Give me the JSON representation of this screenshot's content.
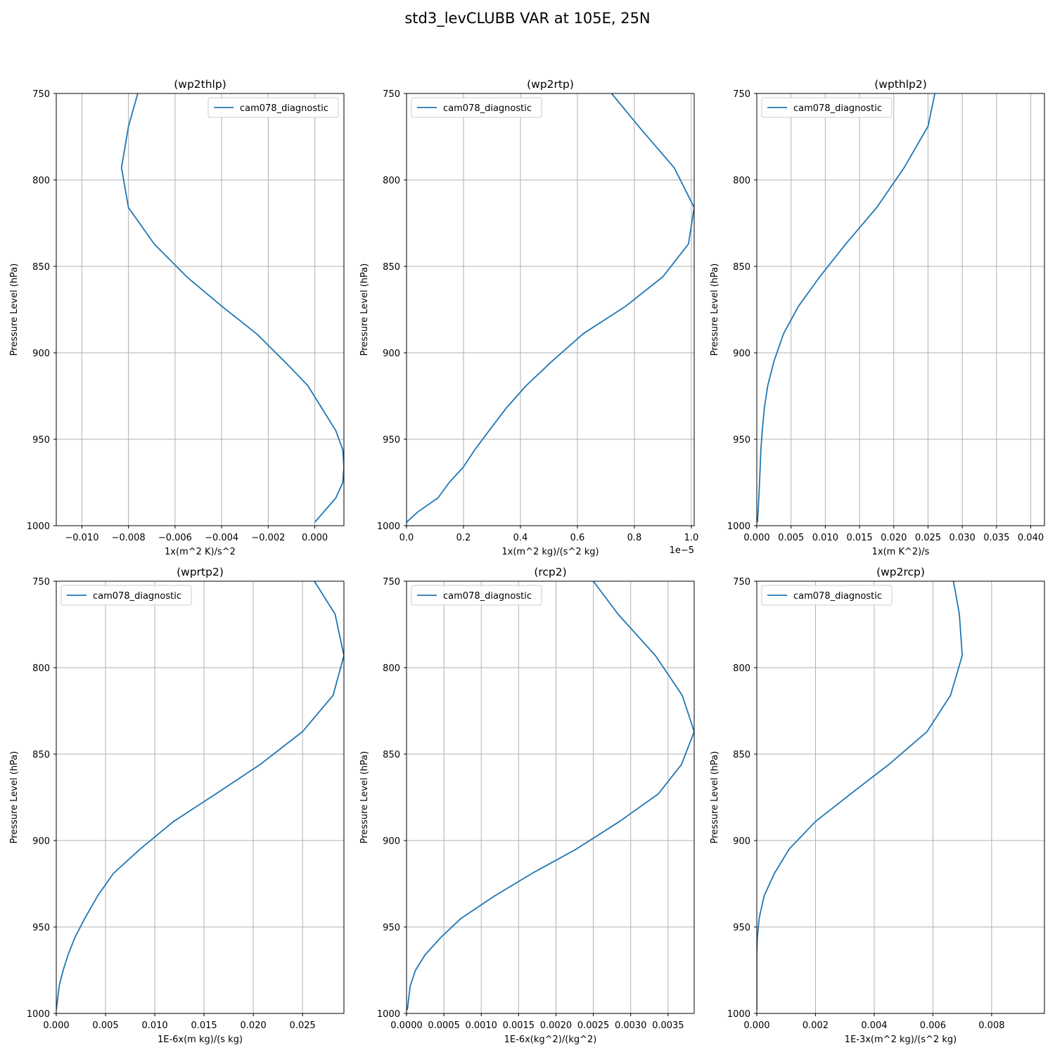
{
  "figure": {
    "title": "std3_levCLUBB VAR at 105E, 25N",
    "line_color": "#1f77b4",
    "grid_color": "#b0b0b0"
  },
  "chart_data": [
    {
      "type": "line",
      "title": "(wp2thlp)",
      "xlabel": "1x(m^2 K)/s^2",
      "ylabel": "Pressure Level (hPa)",
      "xlim": [
        -0.0111,
        0.00125
      ],
      "ylim": [
        1000,
        750
      ],
      "yticks": [
        750,
        800,
        850,
        900,
        950,
        1000
      ],
      "xticks": [
        -0.01,
        -0.008,
        -0.006,
        -0.004,
        -0.002,
        0.0
      ],
      "xtick_labels": [
        "−0.010",
        "−0.008",
        "−0.006",
        "−0.004",
        "−0.002",
        "0.000"
      ],
      "offset_text": "",
      "legend": {
        "label": "cam078_diagnostic",
        "position": "upper right"
      },
      "grid": true,
      "series": [
        {
          "name": "cam078_diagnostic",
          "x": [
            -0.0076,
            -0.008,
            -0.0083,
            -0.008,
            -0.0069,
            -0.0055,
            -0.004,
            -0.0025,
            -0.0013,
            -0.0003,
            0.0003,
            0.0009,
            0.0012,
            0.00125,
            0.0012,
            0.0009,
            0.0
          ],
          "y": [
            750,
            769,
            793,
            816,
            837,
            856,
            873,
            889,
            905,
            919,
            932,
            945,
            956,
            966,
            975,
            984,
            998
          ]
        }
      ]
    },
    {
      "type": "line",
      "title": "(wp2rtp)",
      "xlabel": "1x(m^2 kg)/(s^2 kg)",
      "ylabel": "Pressure Level (hPa)",
      "xlim": [
        0,
        1.01
      ],
      "ylim": [
        1000,
        750
      ],
      "yticks": [
        750,
        800,
        850,
        900,
        950,
        1000
      ],
      "xticks": [
        0.0,
        0.2,
        0.4,
        0.6,
        0.8,
        1.0
      ],
      "xtick_labels": [
        "0.0",
        "0.2",
        "0.4",
        "0.6",
        "0.8",
        "1.0"
      ],
      "offset_text": "1e−5",
      "legend": {
        "label": "cam078_diagnostic",
        "position": "upper left"
      },
      "grid": true,
      "series": [
        {
          "name": "cam078_diagnostic",
          "x": [
            0.72,
            0.82,
            0.94,
            1.01,
            0.99,
            0.9,
            0.77,
            0.62,
            0.51,
            0.42,
            0.35,
            0.29,
            0.24,
            0.2,
            0.15,
            0.11,
            0.04,
            0.0
          ],
          "y": [
            750,
            770,
            793,
            816,
            837,
            856,
            873,
            889,
            905,
            919,
            932,
            945,
            956,
            966,
            975,
            984,
            992,
            998
          ]
        }
      ]
    },
    {
      "type": "line",
      "title": "(wpthlp2)",
      "xlabel": "1x(m K^2)/s",
      "ylabel": "Pressure Level (hPa)",
      "xlim": [
        0,
        0.042
      ],
      "ylim": [
        1000,
        750
      ],
      "yticks": [
        750,
        800,
        850,
        900,
        950,
        1000
      ],
      "xticks": [
        0.0,
        0.005,
        0.01,
        0.015,
        0.02,
        0.025,
        0.03,
        0.035,
        0.04
      ],
      "xtick_labels": [
        "0.000",
        "0.005",
        "0.010",
        "0.015",
        "0.020",
        "0.025",
        "0.030",
        "0.035",
        "0.040"
      ],
      "offset_text": "",
      "legend": {
        "label": "cam078_diagnostic",
        "position": "upper left"
      },
      "grid": true,
      "series": [
        {
          "name": "cam078_diagnostic",
          "x": [
            0.026,
            0.025,
            0.0215,
            0.0175,
            0.013,
            0.0092,
            0.0061,
            0.0039,
            0.0025,
            0.0016,
            0.0011,
            0.0008,
            0.0006,
            0.0005,
            0.0004,
            0.0003,
            0.0001
          ],
          "y": [
            750,
            769,
            793,
            816,
            837,
            856,
            873,
            889,
            905,
            919,
            932,
            945,
            956,
            966,
            975,
            984,
            998
          ]
        }
      ]
    },
    {
      "type": "line",
      "title": "(wprtp2)",
      "xlabel": "1E-6x(m kg)/(s kg)",
      "ylabel": "Pressure Level (hPa)",
      "xlim": [
        0,
        0.0292
      ],
      "ylim": [
        1000,
        750
      ],
      "yticks": [
        750,
        800,
        850,
        900,
        950,
        1000
      ],
      "xticks": [
        0.0,
        0.005,
        0.01,
        0.015,
        0.02,
        0.025
      ],
      "xtick_labels": [
        "0.000",
        "0.005",
        "0.010",
        "0.015",
        "0.020",
        "0.025"
      ],
      "offset_text": "",
      "legend": {
        "label": "cam078_diagnostic",
        "position": "upper left"
      },
      "grid": true,
      "series": [
        {
          "name": "cam078_diagnostic",
          "x": [
            0.0262,
            0.0283,
            0.0292,
            0.0281,
            0.025,
            0.0207,
            0.0162,
            0.0119,
            0.0085,
            0.0058,
            0.0042,
            0.0029,
            0.0019,
            0.0012,
            0.0007,
            0.0003,
            0.0
          ],
          "y": [
            750,
            769,
            793,
            816,
            837,
            856,
            873,
            889,
            905,
            919,
            932,
            945,
            956,
            966,
            975,
            984,
            998
          ]
        }
      ]
    },
    {
      "type": "line",
      "title": "(rcp2)",
      "xlabel": "1E-6x(kg^2)/(kg^2)",
      "ylabel": "Pressure Level (hPa)",
      "xlim": [
        0,
        0.00385
      ],
      "ylim": [
        1000,
        750
      ],
      "yticks": [
        750,
        800,
        850,
        900,
        950,
        1000
      ],
      "xticks": [
        0.0,
        0.0005,
        0.001,
        0.0015,
        0.002,
        0.0025,
        0.003,
        0.0035
      ],
      "xtick_labels": [
        "0.0000",
        "0.0005",
        "0.0010",
        "0.0015",
        "0.0020",
        "0.0025",
        "0.0030",
        "0.0035"
      ],
      "offset_text": "",
      "legend": {
        "label": "cam078_diagnostic",
        "position": "upper left"
      },
      "grid": true,
      "series": [
        {
          "name": "cam078_diagnostic",
          "x": [
            0.0025,
            0.00283,
            0.00333,
            0.00369,
            0.00385,
            0.00368,
            0.00337,
            0.00285,
            0.00227,
            0.00168,
            0.00118,
            0.00073,
            0.00046,
            0.00025,
            0.00012,
            5e-05,
            1e-05
          ],
          "y": [
            750,
            769,
            793,
            816,
            837,
            856,
            873,
            889,
            905,
            919,
            932,
            945,
            956,
            966,
            975,
            984,
            998
          ]
        }
      ]
    },
    {
      "type": "line",
      "title": "(wp2rcp)",
      "xlabel": "1E-3x(m^2 kg)/(s^2 kg)",
      "ylabel": "Pressure Level (hPa)",
      "xlim": [
        0,
        0.0098
      ],
      "ylim": [
        1000,
        750
      ],
      "yticks": [
        750,
        800,
        850,
        900,
        950,
        1000
      ],
      "xticks": [
        0.0,
        0.002,
        0.004,
        0.006,
        0.008
      ],
      "xtick_labels": [
        "0.000",
        "0.002",
        "0.004",
        "0.006",
        "0.008"
      ],
      "offset_text": "",
      "legend": {
        "label": "cam078_diagnostic",
        "position": "upper left"
      },
      "grid": true,
      "series": [
        {
          "name": "cam078_diagnostic",
          "x": [
            0.0067,
            0.0069,
            0.007,
            0.0066,
            0.0058,
            0.0045,
            0.0032,
            0.002,
            0.0011,
            0.0006,
            0.00025,
            8e-05,
            2e-05,
            0.0,
            0.0,
            0.0,
            0.0
          ],
          "y": [
            750,
            769,
            793,
            816,
            837,
            856,
            873,
            889,
            905,
            919,
            932,
            945,
            956,
            966,
            975,
            984,
            998
          ]
        }
      ]
    }
  ]
}
